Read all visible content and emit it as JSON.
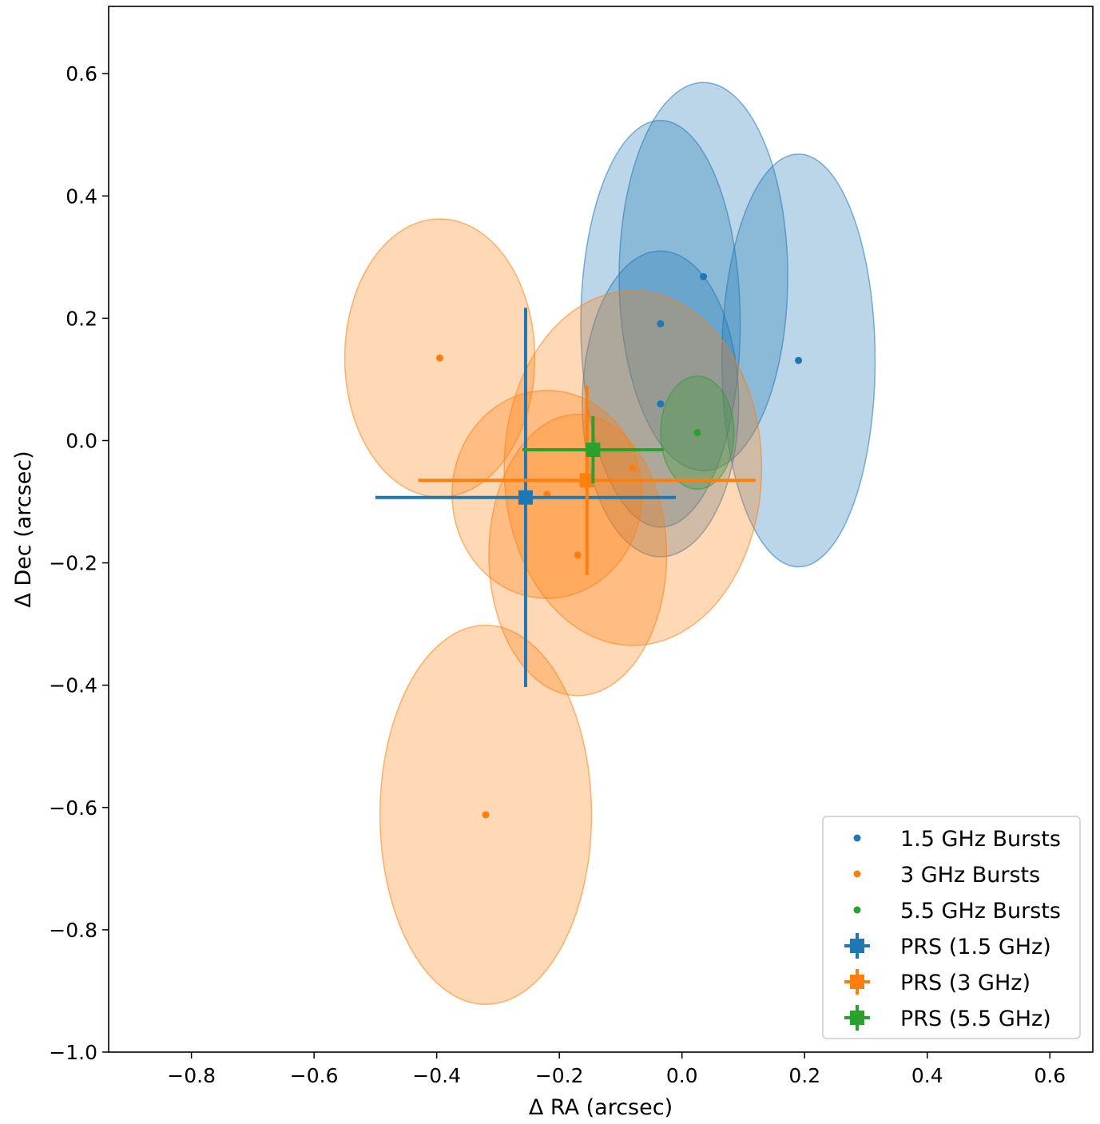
{
  "chart_data": {
    "type": "scatter",
    "title": "",
    "xlabel": "Δ RA (arcsec)",
    "ylabel": "Δ Dec (arcsec)",
    "xlim": [
      -0.935,
      0.67
    ],
    "ylim": [
      -1.0,
      0.71
    ],
    "xticks": [
      -0.8,
      -0.6,
      -0.4,
      -0.2,
      0.0,
      0.2,
      0.4,
      0.6
    ],
    "xtick_labels": [
      "−0.8",
      "−0.6",
      "−0.4",
      "−0.2",
      "0.0",
      "0.2",
      "0.4",
      "0.6"
    ],
    "yticks": [
      0.6,
      0.4,
      0.2,
      0.0,
      -0.2,
      -0.4,
      -0.6,
      -0.8,
      -1.0
    ],
    "ytick_labels": [
      "0.6",
      "0.4",
      "0.2",
      "0.0",
      "−0.2",
      "−0.4",
      "−0.6",
      "−0.8",
      "−1.0"
    ],
    "grid": false,
    "legend_position": "lower-right",
    "colors": {
      "1.5 GHz": "#1f77b4",
      "3 GHz": "#ff7f0e",
      "5.5 GHz": "#2ca02c"
    },
    "bursts": [
      {
        "band": "1.5 GHz",
        "x": 0.035,
        "y": 0.268,
        "width": 0.275,
        "height": 0.635,
        "angle": 0
      },
      {
        "band": "1.5 GHz",
        "x": -0.035,
        "y": 0.191,
        "width": 0.26,
        "height": 0.665,
        "angle": 0
      },
      {
        "band": "1.5 GHz",
        "x": 0.19,
        "y": 0.131,
        "width": 0.25,
        "height": 0.675,
        "angle": 0
      },
      {
        "band": "1.5 GHz",
        "x": -0.035,
        "y": 0.06,
        "width": 0.255,
        "height": 0.5,
        "angle": 0
      },
      {
        "band": "3 GHz",
        "x": -0.395,
        "y": 0.135,
        "width": 0.31,
        "height": 0.455,
        "angle": 0
      },
      {
        "band": "3 GHz",
        "x": -0.08,
        "y": -0.045,
        "width": 0.42,
        "height": 0.58,
        "angle": 0
      },
      {
        "band": "3 GHz",
        "x": -0.22,
        "y": -0.088,
        "width": 0.31,
        "height": 0.34,
        "angle": 0
      },
      {
        "band": "3 GHz",
        "x": -0.17,
        "y": -0.187,
        "width": 0.29,
        "height": 0.46,
        "angle": 0
      },
      {
        "band": "3 GHz",
        "x": -0.32,
        "y": -0.612,
        "width": 0.345,
        "height": 0.62,
        "angle": 0
      },
      {
        "band": "5.5 GHz",
        "x": 0.025,
        "y": 0.013,
        "width": 0.12,
        "height": 0.185,
        "angle": 0
      }
    ],
    "prs": [
      {
        "band": "1.5 GHz",
        "x": -0.255,
        "y": -0.093,
        "xerr": [
          0.245,
          0.245
        ],
        "yerr": [
          0.31,
          0.31
        ]
      },
      {
        "band": "3 GHz",
        "x": -0.155,
        "y": -0.065,
        "xerr": [
          0.275,
          0.275
        ],
        "yerr": [
          0.155,
          0.155
        ]
      },
      {
        "band": "5.5 GHz",
        "x": -0.145,
        "y": -0.015,
        "xerr": [
          0.115,
          0.115
        ],
        "yerr": [
          0.055,
          0.055
        ]
      }
    ]
  },
  "legend": [
    {
      "label": "1.5 GHz Bursts",
      "kind": "dot",
      "color": "#1f77b4"
    },
    {
      "label": "3 GHz Bursts",
      "kind": "dot",
      "color": "#ff7f0e"
    },
    {
      "label": "5.5 GHz Bursts",
      "kind": "dot",
      "color": "#2ca02c"
    },
    {
      "label": "PRS (1.5 GHz)",
      "kind": "errorbar",
      "color": "#1f77b4"
    },
    {
      "label": "PRS (3 GHz)",
      "kind": "errorbar",
      "color": "#ff7f0e"
    },
    {
      "label": "PRS (5.5 GHz)",
      "kind": "errorbar",
      "color": "#2ca02c"
    }
  ]
}
